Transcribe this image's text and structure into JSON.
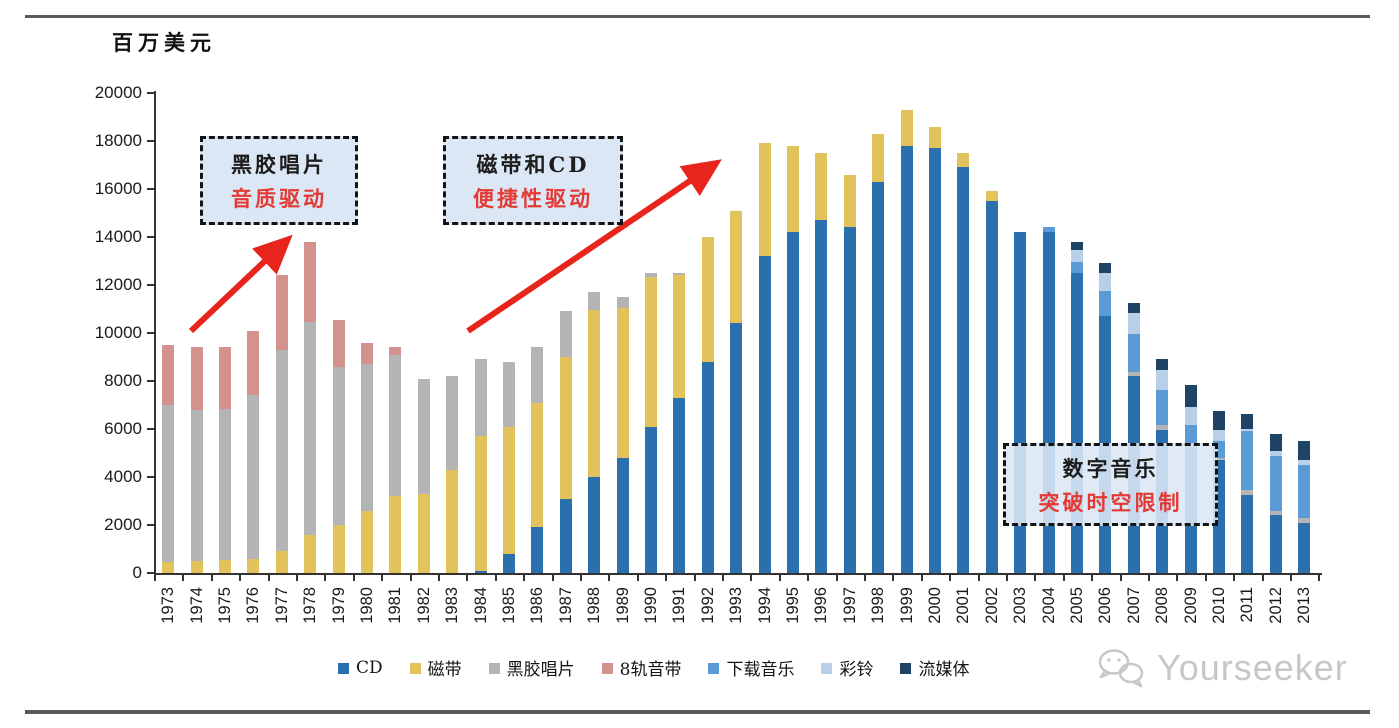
{
  "page": {
    "unit_label": "百万美元",
    "watermark_text": "Yourseeker"
  },
  "annotations": [
    {
      "line1": "黑胶唱片",
      "line2": "音质驱动"
    },
    {
      "line1": "磁带和CD",
      "line2": "便捷性驱动"
    },
    {
      "line1": "数字音乐",
      "line2": "突破时空限制"
    }
  ],
  "chart_data": {
    "type": "bar",
    "stacked": true,
    "title": "",
    "ylabel": "百万美元",
    "xlabel": "",
    "ylim": [
      0,
      20000
    ],
    "ytick_step": 2000,
    "grid": false,
    "legend_position": "bottom",
    "categories": [
      1973,
      1974,
      1975,
      1976,
      1977,
      1978,
      1979,
      1980,
      1981,
      1982,
      1983,
      1984,
      1985,
      1986,
      1987,
      1988,
      1989,
      1990,
      1991,
      1992,
      1993,
      1994,
      1995,
      1996,
      1997,
      1998,
      1999,
      2000,
      2001,
      2002,
      2003,
      2004,
      2005,
      2006,
      2007,
      2008,
      2009,
      2010,
      2011,
      2012,
      2013
    ],
    "series": [
      {
        "name": "CD",
        "color": "#2c6fad",
        "values": [
          0,
          0,
          0,
          0,
          0,
          0,
          0,
          0,
          0,
          0,
          0,
          100,
          800,
          1900,
          3100,
          4000,
          4800,
          6100,
          7300,
          8800,
          10400,
          13200,
          14200,
          14700,
          14400,
          16300,
          17800,
          17700,
          16900,
          15500,
          14200,
          14200,
          12500,
          10700,
          8200,
          5950,
          5250,
          4700,
          3250,
          2400,
          2100
        ]
      },
      {
        "name": "磁带",
        "color": "#e2c25a",
        "values": [
          470,
          520,
          550,
          570,
          900,
          1600,
          2000,
          2600,
          3200,
          3300,
          4300,
          5600,
          5300,
          5200,
          5900,
          6950,
          6250,
          6250,
          5100,
          5200,
          4700,
          4700,
          3600,
          2800,
          2200,
          2000,
          1500,
          900,
          600,
          400,
          0,
          0,
          0,
          0,
          0,
          0,
          0,
          0,
          0,
          0,
          0
        ]
      },
      {
        "name": "黑胶唱片",
        "color": "#b4b4b4",
        "values": [
          6530,
          6280,
          6300,
          6830,
          8400,
          8850,
          6600,
          6100,
          5900,
          4800,
          3900,
          3200,
          2700,
          2300,
          1900,
          750,
          450,
          150,
          100,
          0,
          0,
          0,
          0,
          0,
          0,
          0,
          0,
          0,
          0,
          0,
          0,
          0,
          0,
          0,
          170,
          210,
          130,
          100,
          200,
          200,
          200
        ]
      },
      {
        "name": "8轨音带",
        "color": "#d4928e",
        "values": [
          2500,
          2600,
          2550,
          2700,
          3100,
          3350,
          1950,
          900,
          300,
          0,
          0,
          0,
          0,
          0,
          0,
          0,
          0,
          0,
          0,
          0,
          0,
          0,
          0,
          0,
          0,
          0,
          0,
          0,
          0,
          0,
          0,
          0,
          0,
          0,
          0,
          0,
          0,
          0,
          0,
          0,
          0
        ]
      },
      {
        "name": "下载音乐",
        "color": "#5b9bd5",
        "values": [
          0,
          0,
          0,
          0,
          0,
          0,
          0,
          0,
          0,
          0,
          0,
          0,
          0,
          0,
          0,
          0,
          0,
          0,
          0,
          0,
          0,
          0,
          0,
          0,
          0,
          0,
          0,
          0,
          0,
          0,
          0,
          200,
          460,
          1040,
          1600,
          1460,
          790,
          700,
          2470,
          2290,
          2220
        ]
      },
      {
        "name": "彩铃",
        "color": "#b9cfe8",
        "values": [
          0,
          0,
          0,
          0,
          0,
          0,
          0,
          0,
          0,
          0,
          0,
          0,
          0,
          0,
          0,
          0,
          0,
          0,
          0,
          0,
          0,
          0,
          0,
          0,
          0,
          0,
          0,
          0,
          0,
          0,
          0,
          0,
          490,
          770,
          860,
          830,
          760,
          470,
          100,
          200,
          200
        ]
      },
      {
        "name": "流媒体",
        "color": "#1f4364",
        "values": [
          0,
          0,
          0,
          0,
          0,
          0,
          0,
          0,
          0,
          0,
          0,
          0,
          0,
          0,
          0,
          0,
          0,
          0,
          0,
          0,
          0,
          0,
          0,
          0,
          0,
          0,
          0,
          0,
          0,
          0,
          0,
          0,
          350,
          420,
          420,
          450,
          900,
          760,
          600,
          720,
          760
        ]
      }
    ]
  }
}
